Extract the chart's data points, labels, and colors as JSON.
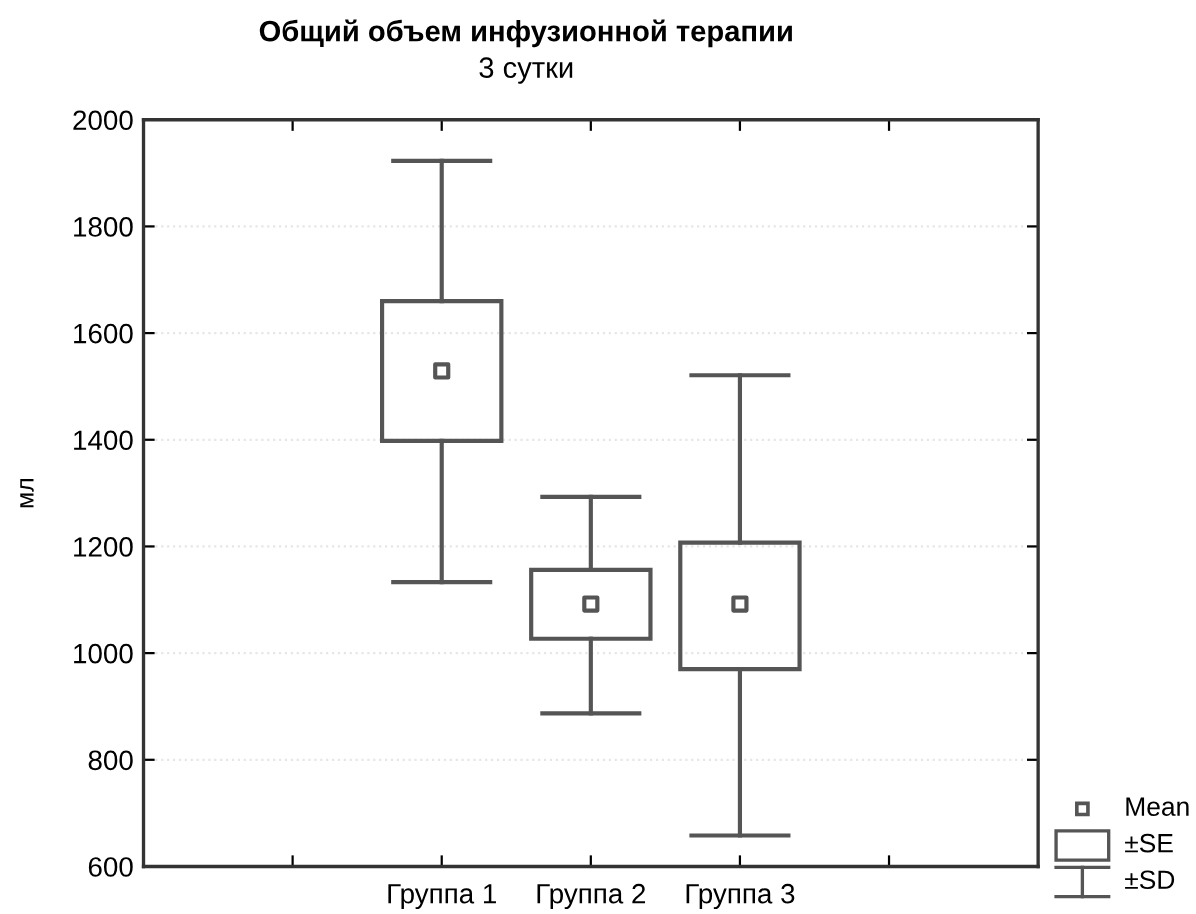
{
  "chart_data": {
    "type": "box",
    "title": "Общий объем инфузионной терапии",
    "subtitle": "3 сутки",
    "ylabel": "мл",
    "categories": [
      null,
      "Группа 1",
      "Группа 2",
      "Группа 3",
      null
    ],
    "boxes": [
      null,
      {
        "low": 1133,
        "q1": 1398,
        "q3": 1660,
        "high": 1923,
        "mean": 1529
      },
      {
        "low": 887,
        "q1": 1027,
        "q3": 1156,
        "high": 1293,
        "mean": 1092
      },
      {
        "low": 658,
        "q1": 970,
        "q3": 1207,
        "high": 1521,
        "mean": 1092
      },
      null
    ],
    "color": "#555555",
    "ylim": [
      600,
      2000
    ],
    "yticks": [
      600,
      800,
      1000,
      1200,
      1400,
      1600,
      1800,
      2000
    ],
    "grid": "y",
    "marker": "square",
    "annotations": [
      "Mean",
      "±SE",
      "±SD"
    ]
  }
}
